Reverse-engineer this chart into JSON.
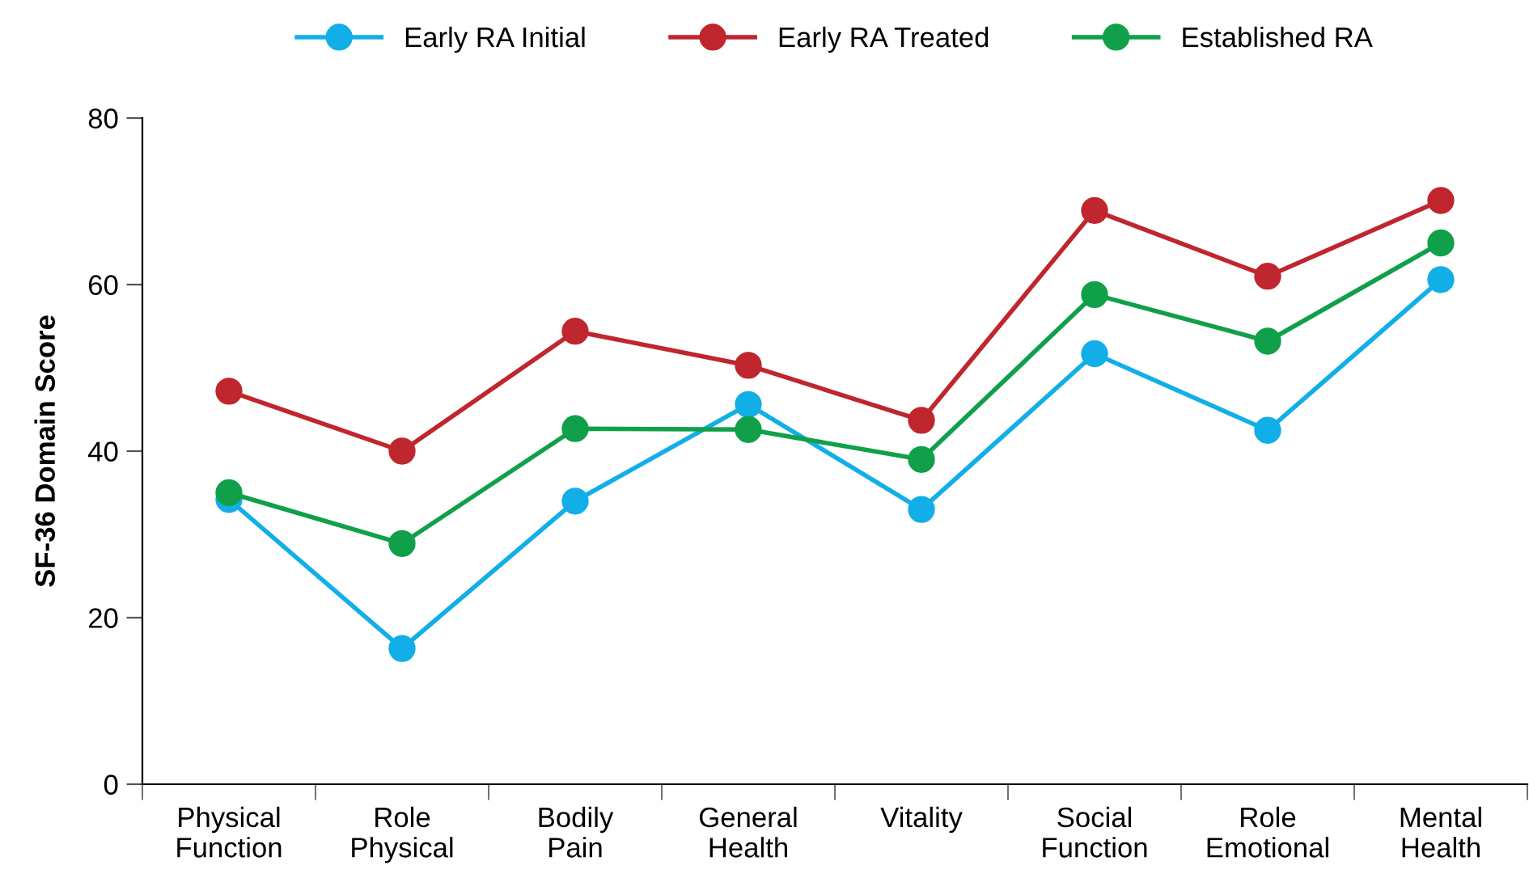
{
  "chart_data": {
    "type": "line",
    "ylabel": "SF-36 Domain Score",
    "categories": [
      "Physical\nFunction",
      "Role\nPhysical",
      "Bodily\nPain",
      "General\nHealth",
      "Vitality",
      "Social\nFunction",
      "Role\nEmotional",
      "Mental\nHealth"
    ],
    "series": [
      {
        "name": "Early RA Initial",
        "color": "#12aee8",
        "values": [
          34.2,
          16.3,
          34,
          45.6,
          33,
          51.7,
          42.5,
          60.6
        ]
      },
      {
        "name": "Early RA Treated",
        "color": "#c0262d",
        "values": [
          47.2,
          40,
          54.4,
          50.3,
          43.7,
          68.9,
          61,
          70.1
        ]
      },
      {
        "name": "Established RA",
        "color": "#11a04a",
        "values": [
          35,
          28.9,
          42.7,
          42.6,
          39,
          58.8,
          53.2,
          65
        ]
      }
    ],
    "ylim": [
      0,
      80
    ],
    "yticks": [
      0,
      20,
      40,
      60,
      80
    ],
    "grid": false,
    "legend": "top",
    "marker": "circle",
    "line_style": "solid"
  }
}
